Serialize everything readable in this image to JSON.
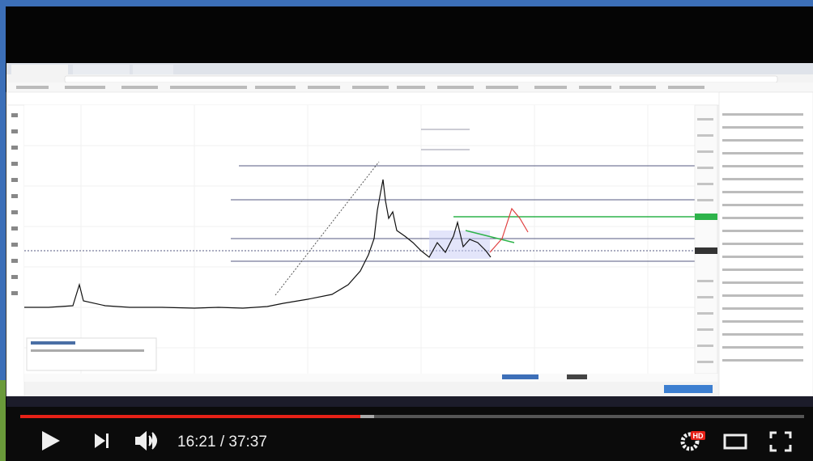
{
  "player": {
    "time": "16:21 / 37:37",
    "quality_badge": "HD"
  }
}
